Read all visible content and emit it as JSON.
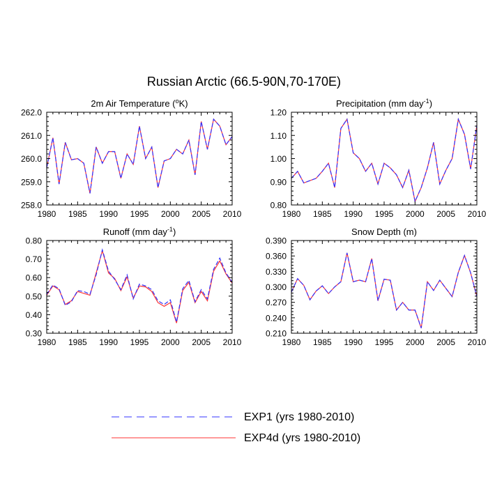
{
  "figure_title": "Russian Arctic (66.5-90N,70-170E)",
  "legend": {
    "items": [
      {
        "label": "EXP1 (yrs 1980-2010)",
        "color": "#3333ff",
        "dash": "dashed"
      },
      {
        "label": "EXP4d (yrs 1980-2010)",
        "color": "#ff3333",
        "dash": "solid"
      }
    ]
  },
  "chart_data": [
    {
      "type": "line",
      "title": "2m Air Temperature (",
      "title_sup": "o",
      "title_tail": "K)",
      "xlim": [
        1980,
        2010
      ],
      "ylim": [
        258.0,
        262.0
      ],
      "xticks": [
        1980,
        1985,
        1990,
        1995,
        2000,
        2005,
        2010
      ],
      "yticks": [
        258.0,
        259.0,
        260.0,
        261.0,
        262.0
      ],
      "ytick_labels": [
        "258.0",
        "259.0",
        "260.0",
        "261.0",
        "262.0"
      ],
      "x": [
        1980,
        1981,
        1982,
        1983,
        1984,
        1985,
        1986,
        1987,
        1988,
        1989,
        1990,
        1991,
        1992,
        1993,
        1994,
        1995,
        1996,
        1997,
        1998,
        1999,
        2000,
        2001,
        2002,
        2003,
        2004,
        2005,
        2006,
        2007,
        2008,
        2009,
        2010
      ],
      "series": [
        {
          "name": "EXP4d (yrs 1980-2010)",
          "values": [
            259.6,
            260.9,
            258.9,
            260.7,
            259.95,
            260.0,
            259.8,
            258.5,
            260.5,
            259.8,
            260.3,
            260.3,
            259.15,
            260.2,
            259.75,
            261.4,
            260.0,
            260.5,
            258.75,
            259.9,
            260.0,
            260.4,
            260.2,
            260.8,
            259.3,
            261.6,
            260.4,
            261.7,
            261.4,
            260.6,
            260.95
          ]
        },
        {
          "name": "EXP1 (yrs 1980-2010)",
          "values": [
            259.6,
            260.9,
            258.9,
            260.7,
            259.95,
            260.0,
            259.8,
            258.5,
            260.5,
            259.8,
            260.3,
            260.3,
            259.15,
            260.2,
            259.75,
            261.4,
            260.0,
            260.5,
            258.75,
            259.9,
            260.0,
            260.4,
            260.2,
            260.8,
            259.3,
            261.6,
            260.4,
            261.7,
            261.4,
            260.6,
            260.95
          ]
        }
      ]
    },
    {
      "type": "line",
      "title": "Precipitation (mm day",
      "title_sup": "-1",
      "title_tail": ")",
      "xlim": [
        1980,
        2010
      ],
      "ylim": [
        0.8,
        1.2
      ],
      "xticks": [
        1980,
        1985,
        1990,
        1995,
        2000,
        2005,
        2010
      ],
      "yticks": [
        0.8,
        0.9,
        1.0,
        1.1,
        1.2
      ],
      "ytick_labels": [
        "0.80",
        "0.90",
        "1.00",
        "1.10",
        "1.20"
      ],
      "x": [
        1980,
        1981,
        1982,
        1983,
        1984,
        1985,
        1986,
        1987,
        1988,
        1989,
        1990,
        1991,
        1992,
        1993,
        1994,
        1995,
        1996,
        1997,
        1998,
        1999,
        2000,
        2001,
        2002,
        2003,
        2004,
        2005,
        2006,
        2007,
        2008,
        2009,
        2010
      ],
      "series": [
        {
          "name": "EXP4d (yrs 1980-2010)",
          "values": [
            0.915,
            0.945,
            0.895,
            0.905,
            0.915,
            0.945,
            0.98,
            0.875,
            1.13,
            1.17,
            1.025,
            1.0,
            0.945,
            0.98,
            0.89,
            0.98,
            0.96,
            0.93,
            0.875,
            0.95,
            0.815,
            0.875,
            0.96,
            1.07,
            0.89,
            0.95,
            1.0,
            1.17,
            1.105,
            0.955,
            1.145
          ]
        },
        {
          "name": "EXP1 (yrs 1980-2010)",
          "values": [
            0.915,
            0.945,
            0.895,
            0.905,
            0.915,
            0.945,
            0.98,
            0.875,
            1.13,
            1.17,
            1.025,
            1.0,
            0.945,
            0.98,
            0.89,
            0.98,
            0.96,
            0.93,
            0.875,
            0.95,
            0.815,
            0.875,
            0.96,
            1.07,
            0.89,
            0.95,
            1.0,
            1.17,
            1.105,
            0.955,
            1.145
          ]
        }
      ]
    },
    {
      "type": "line",
      "title": "Runoff (mm day",
      "title_sup": "-1",
      "title_tail": ")",
      "xlim": [
        1980,
        2010
      ],
      "ylim": [
        0.3,
        0.8
      ],
      "xticks": [
        1980,
        1985,
        1990,
        1995,
        2000,
        2005,
        2010
      ],
      "yticks": [
        0.3,
        0.4,
        0.5,
        0.6,
        0.7,
        0.8
      ],
      "ytick_labels": [
        "0.30",
        "0.40",
        "0.50",
        "0.60",
        "0.70",
        "0.80"
      ],
      "x": [
        1980,
        1981,
        1982,
        1983,
        1984,
        1985,
        1986,
        1987,
        1988,
        1989,
        1990,
        1991,
        1992,
        1993,
        1994,
        1995,
        1996,
        1997,
        1998,
        1999,
        2000,
        2001,
        2002,
        2003,
        2004,
        2005,
        2006,
        2007,
        2008,
        2009,
        2010
      ],
      "series": [
        {
          "name": "EXP4d (yrs 1980-2010)",
          "values": [
            0.505,
            0.555,
            0.535,
            0.455,
            0.475,
            0.525,
            0.515,
            0.505,
            0.625,
            0.745,
            0.625,
            0.595,
            0.53,
            0.605,
            0.49,
            0.555,
            0.55,
            0.525,
            0.465,
            0.445,
            0.465,
            0.355,
            0.53,
            0.575,
            0.465,
            0.525,
            0.475,
            0.635,
            0.69,
            0.62,
            0.57
          ]
        },
        {
          "name": "EXP1 (yrs 1980-2010)",
          "values": [
            0.51,
            0.56,
            0.54,
            0.45,
            0.47,
            0.53,
            0.525,
            0.51,
            0.615,
            0.75,
            0.635,
            0.59,
            0.535,
            0.615,
            0.485,
            0.565,
            0.555,
            0.535,
            0.475,
            0.455,
            0.48,
            0.36,
            0.54,
            0.585,
            0.47,
            0.535,
            0.485,
            0.645,
            0.705,
            0.625,
            0.575
          ]
        }
      ]
    },
    {
      "type": "line",
      "title": "Snow Depth (m)",
      "title_sup": "",
      "title_tail": "",
      "xlim": [
        1980,
        2010
      ],
      "ylim": [
        0.21,
        0.39
      ],
      "xticks": [
        1980,
        1985,
        1990,
        1995,
        2000,
        2005,
        2010
      ],
      "yticks": [
        0.21,
        0.24,
        0.27,
        0.3,
        0.33,
        0.36,
        0.39
      ],
      "ytick_labels": [
        "0.210",
        "0.240",
        "0.270",
        "0.300",
        "0.330",
        "0.360",
        "0.390"
      ],
      "x": [
        1980,
        1981,
        1982,
        1983,
        1984,
        1985,
        1986,
        1987,
        1988,
        1989,
        1990,
        1991,
        1992,
        1993,
        1994,
        1995,
        1996,
        1997,
        1998,
        1999,
        2000,
        2001,
        2002,
        2003,
        2004,
        2005,
        2006,
        2007,
        2008,
        2009,
        2010
      ],
      "series": [
        {
          "name": "EXP4d (yrs 1980-2010)",
          "values": [
            0.29,
            0.316,
            0.303,
            0.275,
            0.292,
            0.302,
            0.287,
            0.3,
            0.31,
            0.366,
            0.31,
            0.313,
            0.31,
            0.355,
            0.273,
            0.315,
            0.313,
            0.255,
            0.27,
            0.255,
            0.255,
            0.22,
            0.31,
            0.293,
            0.313,
            0.297,
            0.281,
            0.328,
            0.361,
            0.327,
            0.281
          ]
        },
        {
          "name": "EXP1 (yrs 1980-2010)",
          "values": [
            0.29,
            0.316,
            0.303,
            0.275,
            0.292,
            0.302,
            0.287,
            0.3,
            0.31,
            0.366,
            0.31,
            0.313,
            0.31,
            0.355,
            0.273,
            0.315,
            0.313,
            0.255,
            0.27,
            0.255,
            0.255,
            0.22,
            0.31,
            0.293,
            0.313,
            0.297,
            0.281,
            0.328,
            0.361,
            0.327,
            0.281
          ]
        }
      ]
    }
  ]
}
